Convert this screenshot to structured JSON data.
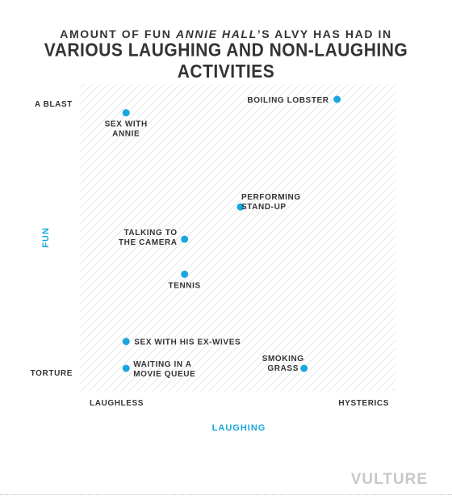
{
  "title": {
    "line1_pre": "AMOUNT OF FUN ",
    "line1_italic": "ANNIE HALL",
    "line1_post": "’S ALVY HAS HAD IN",
    "line2": "VARIOUS LAUGHING AND NON-LAUGHING ACTIVITIES"
  },
  "brand": "VULTURE",
  "colors": {
    "point": "#1aa7df",
    "axis_title": "#1aa7df",
    "text": "#333333",
    "hatch": "#d6d6d6"
  },
  "chart_data": {
    "type": "scatter",
    "xlabel": "LAUGHING",
    "ylabel": "FUN",
    "x_tick_labels": [
      "LAUGHLESS",
      "HYSTERICS"
    ],
    "y_tick_labels": [
      "A BLAST",
      "TORTURE"
    ],
    "xlim": [
      0,
      100
    ],
    "ylim": [
      0,
      100
    ],
    "grid": false,
    "background": "diagonal hatch",
    "points": [
      {
        "label": [
          "SEX WITH",
          "ANNIE"
        ],
        "x": 8,
        "y": 95
      },
      {
        "label": [
          "BOILING LOBSTER"
        ],
        "x": 91,
        "y": 100
      },
      {
        "label": [
          "PERFORMING",
          "STAND-UP"
        ],
        "x": 53,
        "y": 60
      },
      {
        "label": [
          "TALKING TO",
          "THE CAMERA"
        ],
        "x": 31,
        "y": 48
      },
      {
        "label": [
          "TENNIS"
        ],
        "x": 31,
        "y": 35
      },
      {
        "label": [
          "SEX WITH HIS EX-WIVES"
        ],
        "x": 8,
        "y": 10
      },
      {
        "label": [
          "WAITING IN A",
          "MOVIE QUEUE"
        ],
        "x": 8,
        "y": 0
      },
      {
        "label": [
          "SMOKING",
          "GRASS"
        ],
        "x": 78,
        "y": 0
      }
    ]
  }
}
